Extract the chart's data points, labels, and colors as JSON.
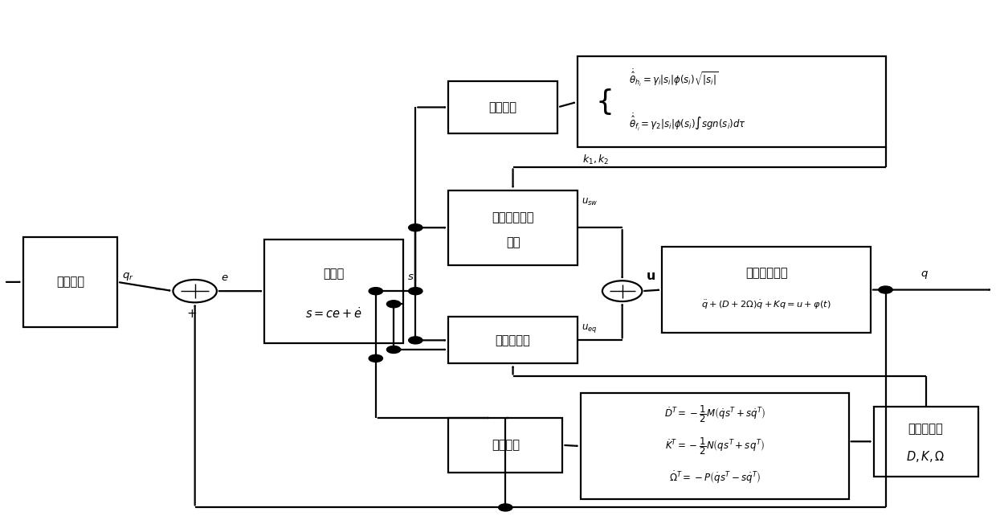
{
  "fig_width": 12.4,
  "fig_height": 6.47,
  "dpi": 100,
  "bg": "#ffffff",
  "lw": 1.6,
  "fs": 10.5,
  "fs_eq": 8.5,
  "ref_model": [
    0.022,
    0.37,
    0.095,
    0.175
  ],
  "sliding": [
    0.265,
    0.34,
    0.14,
    0.2
  ],
  "fuzzy": [
    0.45,
    0.745,
    0.11,
    0.1
  ],
  "feq": [
    0.58,
    0.718,
    0.31,
    0.175
  ],
  "supertwist": [
    0.45,
    0.49,
    0.13,
    0.145
  ],
  "equivctrl": [
    0.45,
    0.3,
    0.13,
    0.09
  ],
  "sj1": [
    0.195,
    0.44,
    0.022
  ],
  "sj2": [
    0.625,
    0.44,
    0.02
  ],
  "gyro": [
    0.665,
    0.36,
    0.21,
    0.165
  ],
  "adaptive": [
    0.45,
    0.09,
    0.115,
    0.105
  ],
  "aeq": [
    0.583,
    0.038,
    0.27,
    0.205
  ],
  "paramest": [
    0.878,
    0.082,
    0.105,
    0.135
  ]
}
